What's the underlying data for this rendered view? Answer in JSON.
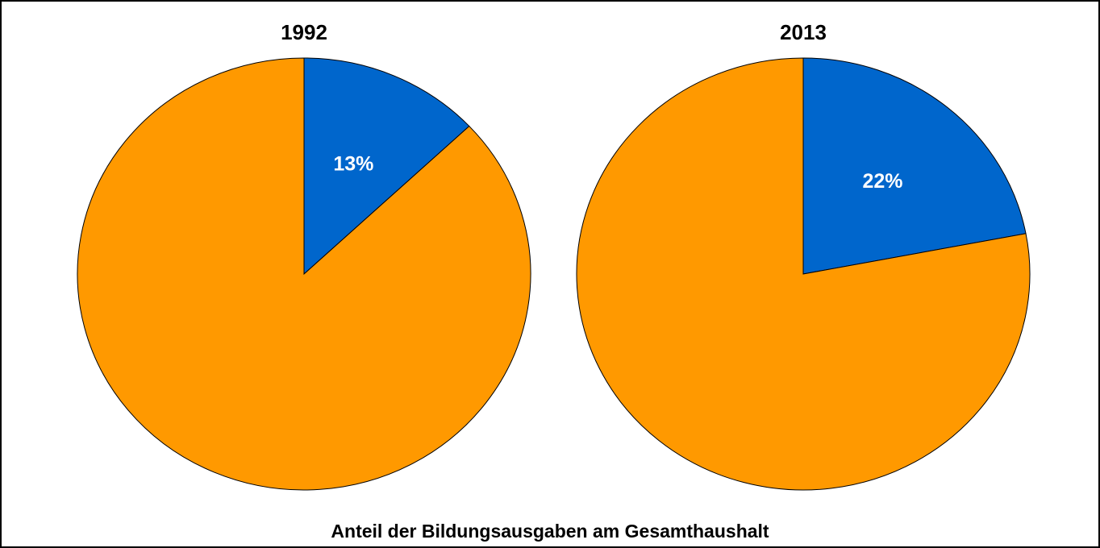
{
  "chart_data": [
    {
      "type": "pie",
      "title": "1992",
      "values": [
        13,
        87
      ],
      "value_labels": [
        "13%",
        null
      ],
      "colors": [
        "#0066cc",
        "#ff9900"
      ]
    },
    {
      "type": "pie",
      "title": "2013",
      "values": [
        22,
        78
      ],
      "value_labels": [
        "22%",
        null
      ],
      "colors": [
        "#0066cc",
        "#ff9900"
      ]
    }
  ],
  "caption": "Anteil der Bildungsausgaben am Gesamthaushalt"
}
